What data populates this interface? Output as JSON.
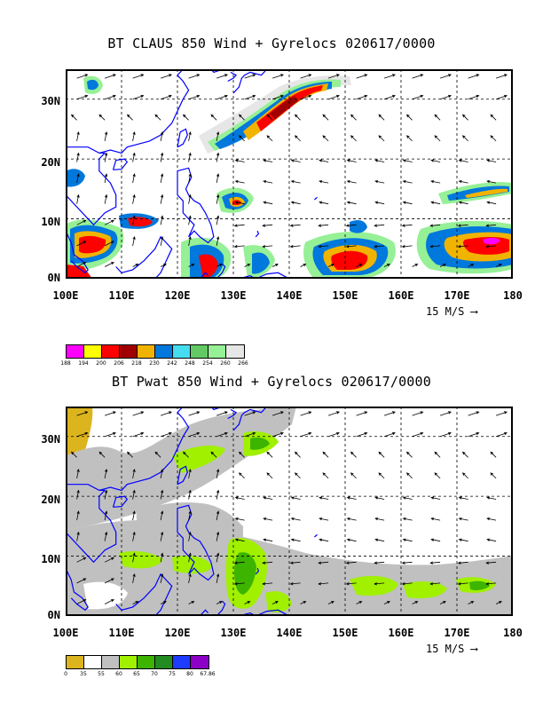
{
  "panels": [
    {
      "title": "BT CLAUS 850 Wind + Gyrelocs 020617/0000",
      "lat_labels": [
        "30N",
        "20N",
        "10N",
        "0N"
      ],
      "lon_labels": [
        "100E",
        "110E",
        "120E",
        "130E",
        "140E",
        "150E",
        "160E",
        "170E",
        "180"
      ],
      "scale_label": "15 M/S",
      "legend": {
        "labels": [
          "188",
          "194",
          "200",
          "206",
          "218",
          "230",
          "242",
          "248",
          "254",
          "260",
          "266"
        ],
        "colors": [
          "#ff00ff",
          "#ffff00",
          "#ff0000",
          "#a00000",
          "#f0b400",
          "#0078dc",
          "#46dcf0",
          "#64c864",
          "#96f096",
          "#e6e6e6"
        ]
      }
    },
    {
      "title": "BT Pwat 850 Wind + Gyrelocs 020617/0000",
      "lat_labels": [
        "30N",
        "20N",
        "10N",
        "0N"
      ],
      "lon_labels": [
        "100E",
        "110E",
        "120E",
        "130E",
        "140E",
        "150E",
        "160E",
        "170E",
        "180"
      ],
      "scale_label": "15 M/S",
      "legend": {
        "labels": [
          "0",
          "35",
          "55",
          "60",
          "65",
          "70",
          "75",
          "80",
          "67.86"
        ],
        "colors": [
          "#dcb41e",
          "#ffffff",
          "#c0c0c0",
          "#a0f000",
          "#3cb400",
          "#228b22",
          "#1e3cff",
          "#8c00c8"
        ]
      }
    }
  ],
  "map": {
    "lon_min": 100,
    "lon_max": 180,
    "lat_min": 0,
    "lat_max": 35,
    "coast_color": "#0000ff"
  }
}
